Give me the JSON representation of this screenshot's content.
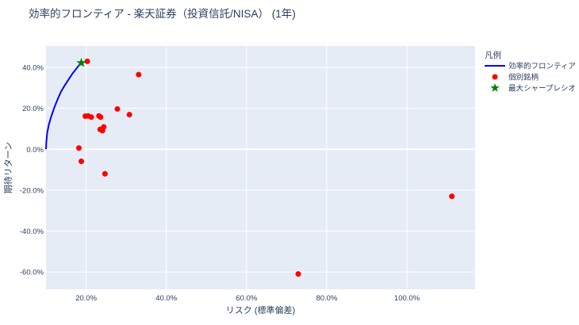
{
  "chart_data": {
    "type": "scatter",
    "title": "効率的フロンティア - 楽天証券（投資信託/NISA） (1年)",
    "xlabel": "リスク (標準偏差)",
    "ylabel": "期待リターン",
    "xlim": [
      0.1,
      1.17
    ],
    "ylim": [
      -0.685,
      0.505
    ],
    "x_ticks": [
      0.2,
      0.4,
      0.6,
      0.8,
      1.0
    ],
    "x_tick_labels": [
      "20.0%",
      "40.0%",
      "60.0%",
      "80.0%",
      "100.0%"
    ],
    "y_ticks": [
      0.4,
      0.2,
      0.0,
      -0.2,
      -0.4,
      -0.6
    ],
    "y_tick_labels": [
      "40.0%",
      "20.0%",
      "0.0%",
      "-20.0%",
      "-40.0%",
      "-60.0%"
    ],
    "grid": true,
    "legend_position": "top-right",
    "legend_title": "凡例",
    "series": [
      {
        "name": "効率的フロンティア",
        "kind": "line",
        "color": "#0000ff",
        "x": [
          0.1,
          0.101,
          0.103,
          0.107,
          0.113,
          0.12,
          0.128,
          0.137,
          0.146,
          0.156,
          0.166,
          0.176,
          0.186
        ],
        "y": [
          0.0,
          0.04,
          0.08,
          0.12,
          0.16,
          0.2,
          0.24,
          0.28,
          0.31,
          0.34,
          0.37,
          0.395,
          0.42
        ]
      },
      {
        "name": "個別銘柄",
        "kind": "markers",
        "color": "#ff0000",
        "x": [
          0.203,
          0.331,
          0.198,
          0.205,
          0.213,
          0.232,
          0.236,
          0.278,
          0.308,
          0.235,
          0.244,
          0.241,
          0.182,
          0.188,
          0.247,
          1.112,
          0.729
        ],
        "y": [
          0.43,
          0.365,
          0.162,
          0.163,
          0.157,
          0.163,
          0.157,
          0.197,
          0.169,
          0.097,
          0.109,
          0.091,
          0.006,
          -0.059,
          -0.12,
          -0.23,
          -0.61
        ]
      },
      {
        "name": "最大シャープレシオ",
        "kind": "star",
        "color": "#008000",
        "x": [
          0.188
        ],
        "y": [
          0.422
        ]
      }
    ]
  }
}
